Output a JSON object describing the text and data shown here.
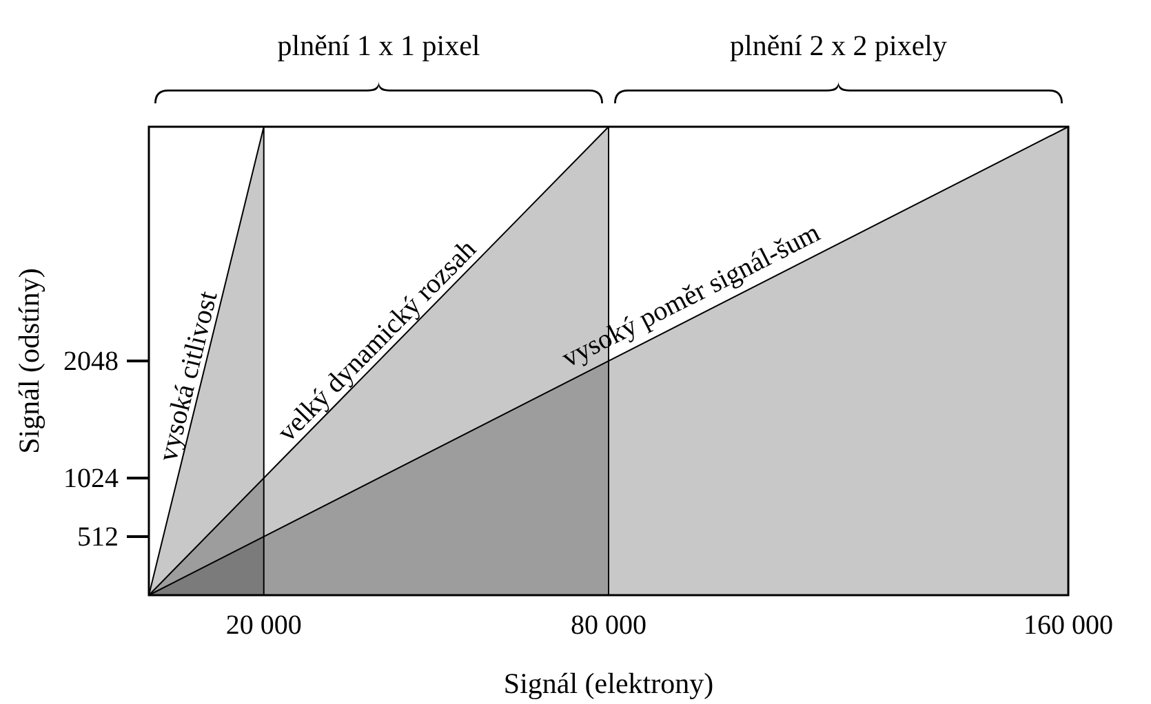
{
  "chart_data": {
    "type": "area",
    "xlabel": "Signál (elektrony)",
    "ylabel": "Signál (odstíny)",
    "xlim": [
      0,
      160000
    ],
    "ylim": [
      0,
      4096
    ],
    "xticks": [
      {
        "value": 20000,
        "label": "20 000"
      },
      {
        "value": 80000,
        "label": "80 000"
      },
      {
        "value": 160000,
        "label": "160 000"
      }
    ],
    "yticks": [
      512,
      1024,
      2048
    ],
    "series": [
      {
        "name": "vysoká citlivost",
        "color": "#c8c8c8",
        "x": [
          0,
          20000
        ],
        "values": [
          0,
          4096
        ]
      },
      {
        "name": "velký dynamický rozsah",
        "color": "#c8c8c8",
        "x": [
          0,
          80000
        ],
        "values": [
          0,
          4096
        ]
      },
      {
        "name": "vysoký poměr signál-šum",
        "color": "#c8c8c8",
        "x": [
          0,
          160000
        ],
        "values": [
          0,
          4096
        ]
      }
    ],
    "annotations": [
      "plnění 1 x 1 pixel",
      "plnění 2 x 2 pixely"
    ]
  }
}
